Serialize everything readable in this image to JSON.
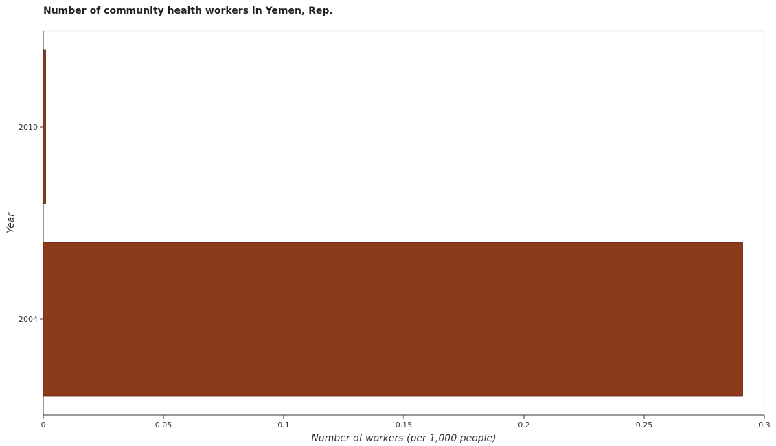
{
  "chart_data": {
    "type": "bar",
    "orientation": "horizontal",
    "title": "Number of community health workers in Yemen, Rep.",
    "xlabel": "Number of workers (per 1,000 people)",
    "ylabel": "Year",
    "categories": [
      "2004",
      "2010"
    ],
    "values": [
      0.291,
      0.001
    ],
    "xlim": [
      0,
      0.3
    ],
    "xticks": [
      0,
      0.05,
      0.1,
      0.15,
      0.2,
      0.25,
      0.3
    ],
    "xtick_labels": [
      "0",
      "0.05",
      "0.1",
      "0.15",
      "0.2",
      "0.25",
      "0.3"
    ],
    "grid": false,
    "bar_color": "#8B3A1A",
    "bar_edge_color": "#5c2410"
  }
}
